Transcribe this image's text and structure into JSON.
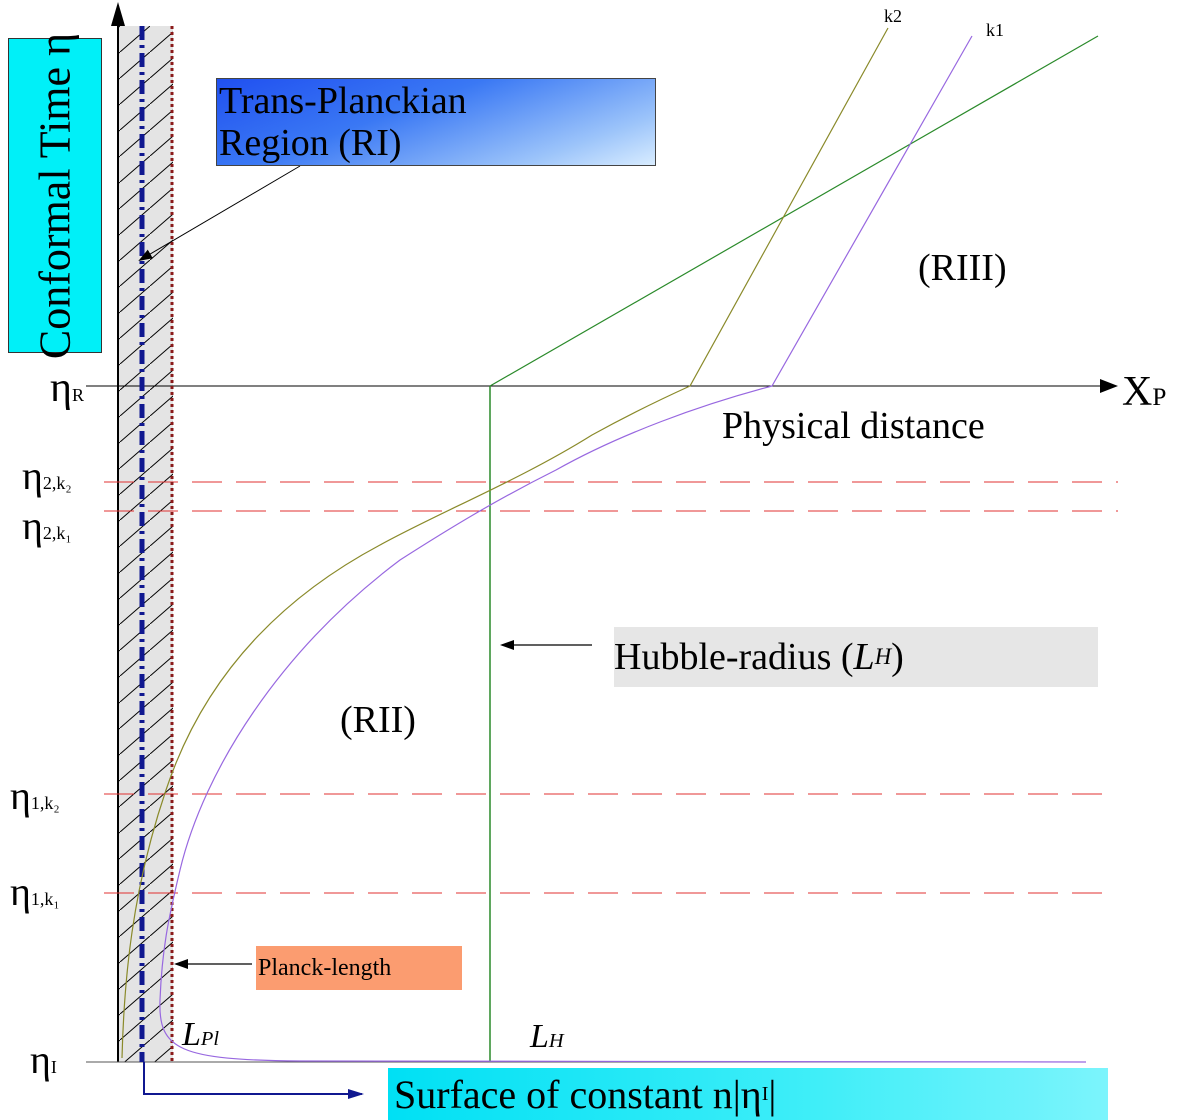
{
  "y_axis_label": "Conformal Time η",
  "x_axis": {
    "symbol": "X",
    "sub": "P",
    "label": "Physical distance"
  },
  "regions": {
    "ri_line1": "Trans-Planckian",
    "ri_line2": "Region (RI)",
    "rii": "(RII)",
    "riii": "(RIII)"
  },
  "hubble": {
    "text": "Hubble-radius (",
    "symbol": "L",
    "sub": "H",
    "close": " )"
  },
  "planck_label": "Planck-length",
  "surface_label": "Surface of constant n|η",
  "surface_sub": "I",
  "surface_close": "|",
  "lpl": {
    "symbol": "L",
    "sub": "Pl"
  },
  "lh": {
    "symbol": "L",
    "sub": "H"
  },
  "curve_labels": {
    "k1": "k1",
    "k2": "k2"
  },
  "eta_labels": {
    "eta_R": {
      "symbol": "η",
      "sub": "R"
    },
    "eta_2k2": {
      "symbol": "η",
      "sub": "2,k₂"
    },
    "eta_2k1": {
      "symbol": "η",
      "sub": "2,k₁"
    },
    "eta_1k2": {
      "symbol": "η",
      "sub": "1,k₂"
    },
    "eta_1k1": {
      "symbol": "η",
      "sub": "1,k₁"
    },
    "eta_I": {
      "symbol": "η",
      "sub": "I"
    }
  },
  "colors": {
    "axis": "#000000",
    "dash_red": "#e03030",
    "hubble_green": "#2a8a2a",
    "k1_purple": "#9868e0",
    "k2_olive": "#8a8a2a",
    "planck_line": "#8b1a1a",
    "blue_line": "#101890"
  }
}
